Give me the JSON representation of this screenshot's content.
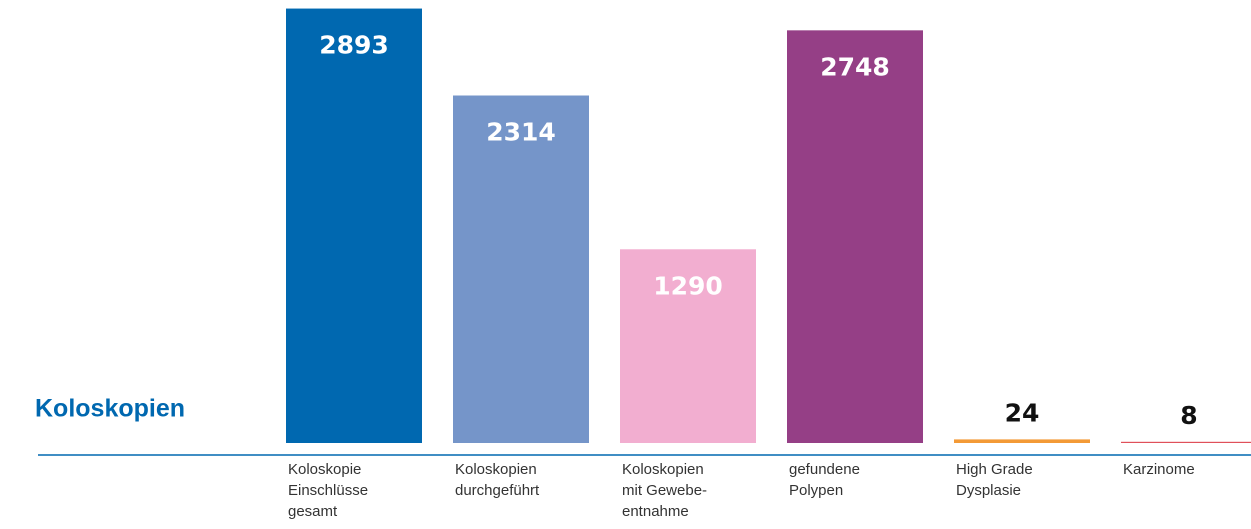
{
  "chart_data": {
    "type": "bar",
    "title": "Koloskopien",
    "categories": [
      [
        "Koloskopie",
        "Einschlüsse",
        "gesamt"
      ],
      [
        "Koloskopien",
        "durchgeführt"
      ],
      [
        "Koloskopien",
        "mit Gewebe-",
        "entnahme"
      ],
      [
        "gefundene",
        "Polypen"
      ],
      [
        "High Grade",
        "Dysplasie"
      ],
      [
        "Karzinome"
      ]
    ],
    "values": [
      2893,
      2314,
      1290,
      2748,
      24,
      8
    ],
    "colors": [
      "#0068b0",
      "#7595c9",
      "#f2aed0",
      "#953f86",
      "#f39a36",
      "#e0505a"
    ],
    "ylim": [
      0,
      2950
    ]
  }
}
